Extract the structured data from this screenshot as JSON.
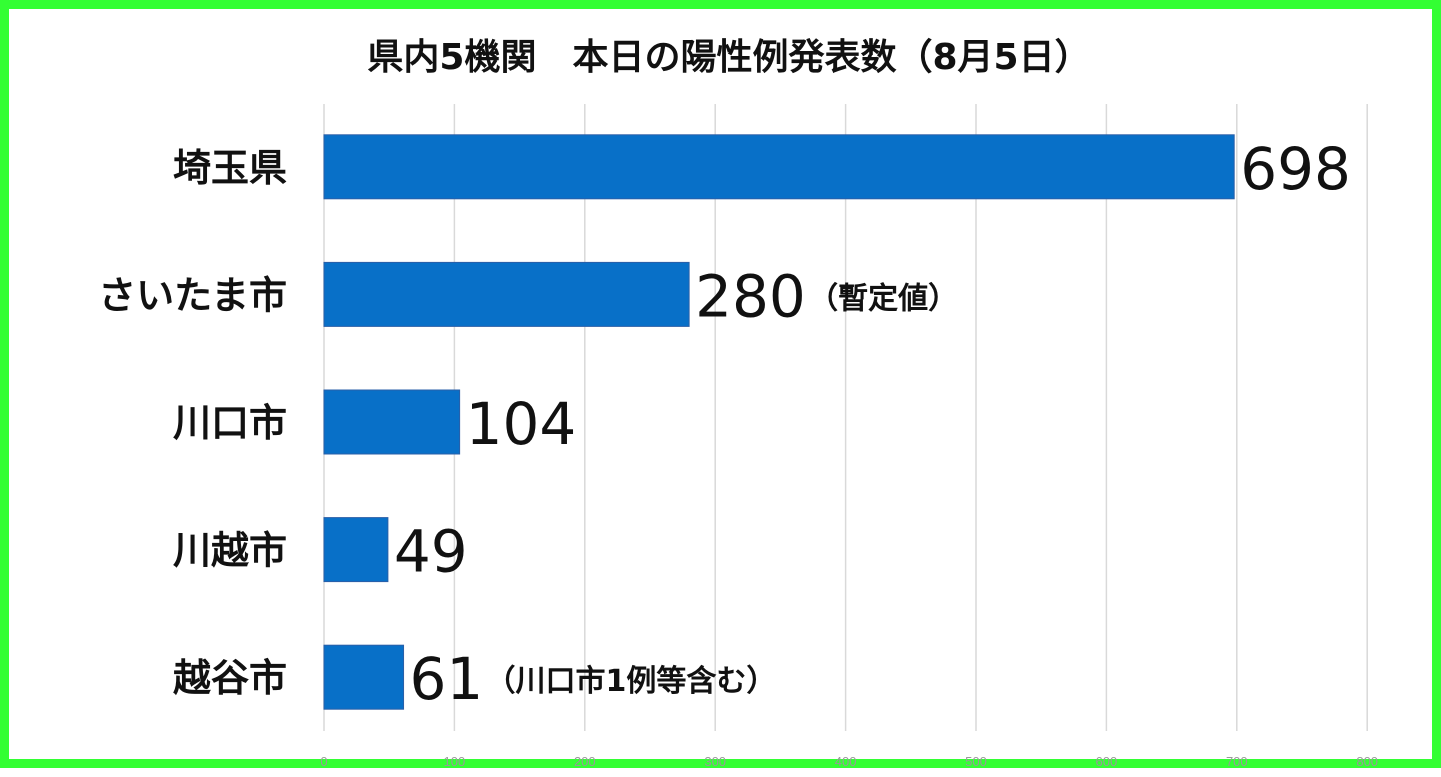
{
  "chart_data": {
    "type": "bar",
    "orientation": "horizontal",
    "title": "県内5機関　本日の陽性例発表数（8月5日）",
    "categories": [
      "埼玉県",
      "さいたま市",
      "川口市",
      "川越市",
      "越谷市"
    ],
    "values": [
      698,
      280,
      104,
      49,
      61
    ],
    "value_labels": [
      "698",
      "280",
      "104",
      "49",
      "61"
    ],
    "annotations": [
      "",
      "（暫定値）",
      "",
      "",
      "（川口市1例等含む）"
    ],
    "xlim": [
      0,
      800
    ],
    "xticks": [
      "0",
      "100",
      "200",
      "300",
      "400",
      "500",
      "600",
      "700",
      "800"
    ],
    "grid": true,
    "bar_color": "#0870c8",
    "frame_color": "#33ff33"
  }
}
